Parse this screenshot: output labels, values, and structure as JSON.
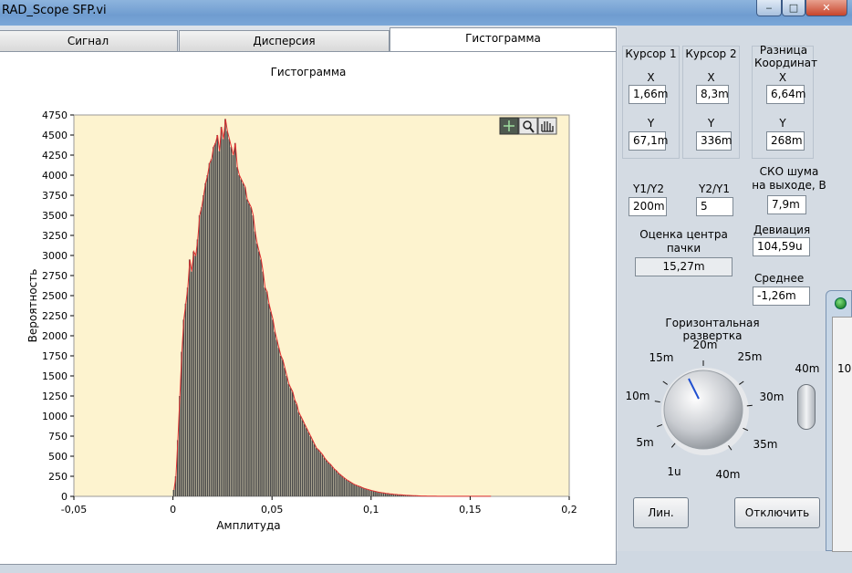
{
  "window": {
    "title": "RAD_Scope SFP.vi",
    "minimize_glyph": "‒",
    "maximize_glyph": "□",
    "close_glyph": "✕"
  },
  "tabs": [
    {
      "label": "Сигнал"
    },
    {
      "label": "Дисперсия"
    },
    {
      "label": "Гистограмма"
    }
  ],
  "chart_data": {
    "type": "bar",
    "title": "Гистограмма",
    "xlabel": "Амплитуда",
    "ylabel": "Вероятность",
    "xlim": [
      -0.05,
      0.2
    ],
    "ylim": [
      0,
      4750
    ],
    "x_ticks": [
      "-0,05",
      "0",
      "0,05",
      "0,1",
      "0,15",
      "0,2"
    ],
    "y_ticks": [
      "0",
      "250",
      "500",
      "750",
      "1000",
      "1250",
      "1500",
      "1750",
      "2000",
      "2250",
      "2500",
      "2750",
      "3000",
      "3250",
      "3500",
      "3750",
      "4000",
      "4250",
      "4500",
      "4750"
    ],
    "grid": false,
    "bin_width": 0.001,
    "x_start": 0.0,
    "values": [
      80,
      250,
      700,
      1250,
      1800,
      2200,
      2400,
      2600,
      2950,
      2800,
      3050,
      3000,
      3200,
      3500,
      3600,
      3750,
      3900,
      4000,
      4150,
      4200,
      4350,
      4400,
      4500,
      4300,
      4600,
      4450,
      4700,
      4550,
      4450,
      4350,
      4250,
      4400,
      4100,
      4000,
      3950,
      3900,
      3850,
      3700,
      3650,
      3600,
      3500,
      3300,
      3150,
      3050,
      2950,
      2800,
      2600,
      2550,
      2400,
      2300,
      2200,
      2050,
      1950,
      1850,
      1750,
      1700,
      1600,
      1500,
      1400,
      1350,
      1300,
      1200,
      1150,
      1050,
      1000,
      950,
      900,
      850,
      800,
      750,
      700,
      650,
      600,
      580,
      550,
      520,
      480,
      450,
      420,
      400,
      370,
      340,
      320,
      290,
      270,
      250,
      230,
      210,
      195,
      180,
      165,
      150,
      140,
      130,
      120,
      110,
      100,
      92,
      85,
      78,
      72,
      66,
      60,
      55,
      50,
      46,
      42,
      38,
      35,
      32,
      29,
      26,
      24,
      22,
      20,
      18,
      16,
      14,
      12,
      11,
      10,
      9,
      8,
      7,
      6,
      5,
      4,
      4,
      3,
      3,
      2,
      2,
      2,
      1,
      1,
      1,
      1,
      1,
      1,
      1,
      1,
      1,
      1,
      1,
      1,
      1,
      1,
      1,
      1,
      1,
      1,
      1,
      1,
      1,
      1,
      1,
      1,
      1,
      1,
      1,
      1
    ],
    "colors": {
      "bar": "#4a4a4a",
      "plot_bg": "#fdf3cf",
      "line": "#e03030"
    }
  },
  "right_panel": {
    "cursor1": {
      "title": "Курсор 1",
      "x_label": "X",
      "x_value": "1,66m",
      "y_label": "Y",
      "y_value": "67,1m"
    },
    "cursor2": {
      "title": "Курсор 2",
      "x_label": "X",
      "x_value": "8,3m",
      "y_label": "Y",
      "y_value": "336m"
    },
    "diff": {
      "title": "Разница Координат",
      "x_label": "X",
      "x_value": "6,64m",
      "y_label": "Y",
      "y_value": "268m"
    },
    "y1y2": {
      "label": "Y1/Y2",
      "value": "200m"
    },
    "y2y1": {
      "label": "Y2/Y1",
      "value": "5"
    },
    "noise": {
      "label": "СКО шума на выходе, В",
      "value": "7,9m"
    },
    "packet": {
      "label": "Оценка центра пачки",
      "value": "15,27m"
    },
    "deviation": {
      "label": "Девиация",
      "value": "104,59u"
    },
    "mean": {
      "label": "Среднее",
      "value": "-1,26m"
    },
    "sweep": {
      "label": "Горизонтальная развертка",
      "ticks": [
        "1u",
        "5m",
        "10m",
        "15m",
        "20m",
        "25m",
        "30m",
        "35m",
        "40m"
      ],
      "extra_label": "40m"
    },
    "btn_lin": "Лин.",
    "btn_off": "Отключить"
  },
  "side_window": {
    "text": "10"
  }
}
